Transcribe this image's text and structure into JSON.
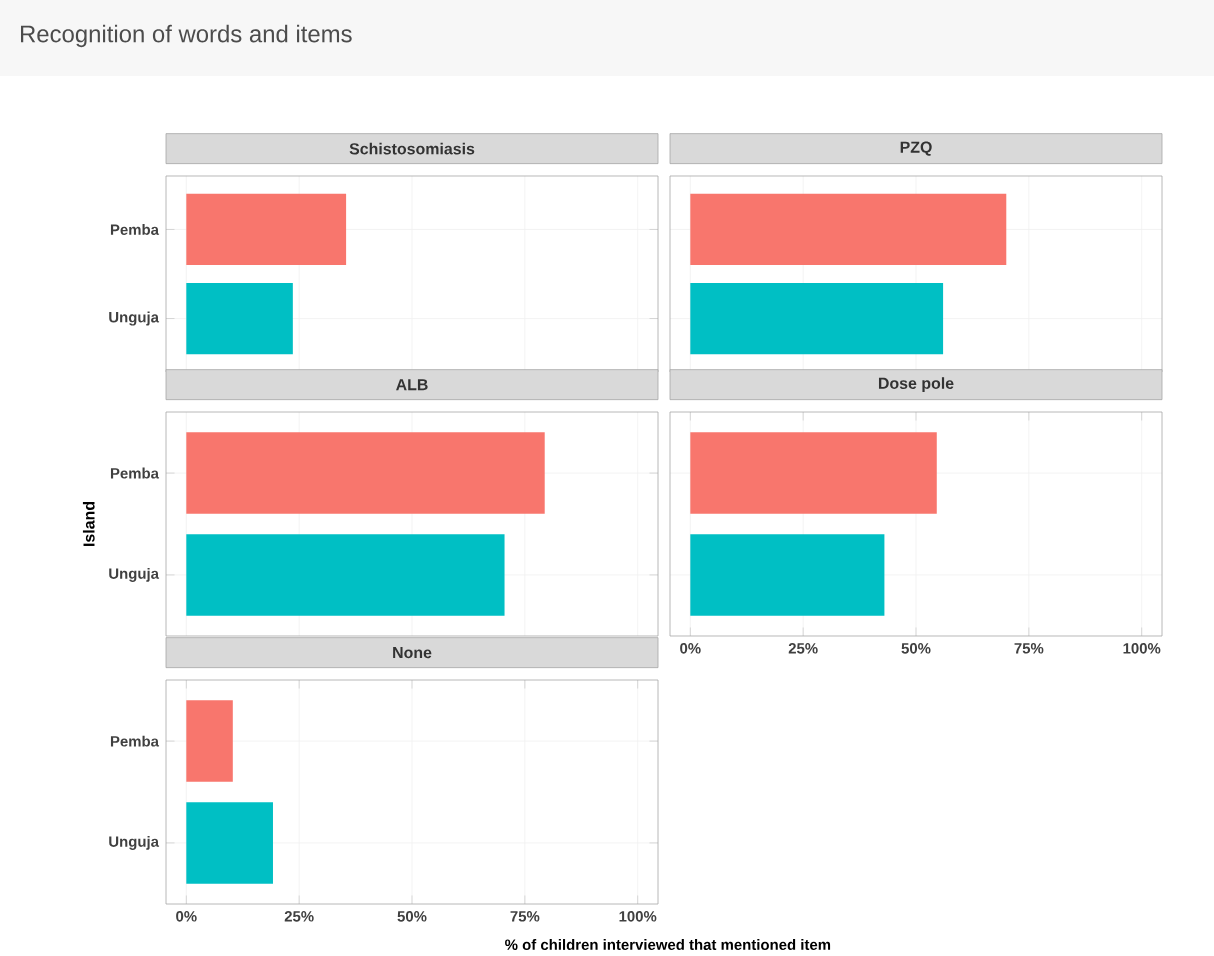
{
  "chart_data": [
    {
      "type": "bar",
      "orientation": "horizontal",
      "title": "Schistosomiasis",
      "annotations": [
        "Recognition of words and items"
      ],
      "categories": [
        "Pemba",
        "Unguja"
      ],
      "values": [
        35.4,
        23.6
      ],
      "colors": [
        "#f8766d",
        "#00bfc4"
      ],
      "xlim": [
        -4.5,
        104.5
      ],
      "xticks": [
        {
          "value": 0,
          "label": null
        },
        {
          "value": 25,
          "label": null
        },
        {
          "value": 50,
          "label": null
        },
        {
          "value": 75,
          "label": null
        },
        {
          "value": 100,
          "label": null
        }
      ],
      "grid": true,
      "tick_labels": "y"
    },
    {
      "type": "bar",
      "orientation": "horizontal",
      "title": "PZQ",
      "categories": [
        null,
        null
      ],
      "values": [
        70,
        56
      ],
      "colors": [
        "#f8766d",
        "#00bfc4"
      ],
      "xlim": [
        -4.5,
        104.5
      ],
      "xticks": [
        {
          "value": 0,
          "label": null
        },
        {
          "value": 25,
          "label": null
        },
        {
          "value": 50,
          "label": null
        },
        {
          "value": 75,
          "label": null
        },
        {
          "value": 100,
          "label": null
        }
      ],
      "grid": true,
      "tick_labels": false
    },
    {
      "type": "bar",
      "orientation": "horizontal",
      "title": "ALB",
      "ylabel": "Island",
      "categories": [
        "Pemba",
        "Unguja"
      ],
      "values": [
        79.4,
        70.5
      ],
      "colors": [
        "#f8766d",
        "#00bfc4"
      ],
      "xlim": [
        -4.5,
        104.5
      ],
      "xticks": [
        {
          "value": 0,
          "label": null
        },
        {
          "value": 25,
          "label": null
        },
        {
          "value": 50,
          "label": null
        },
        {
          "value": 75,
          "label": null
        },
        {
          "value": 100,
          "label": null
        }
      ],
      "grid": true,
      "tick_labels": "y"
    },
    {
      "type": "bar",
      "orientation": "horizontal",
      "title": "Dose pole",
      "categories": [
        null,
        null
      ],
      "values": [
        54.6,
        43
      ],
      "colors": [
        "#f8766d",
        "#00bfc4"
      ],
      "xlim": [
        -4.5,
        104.5
      ],
      "xticks": [
        {
          "value": 0,
          "label": "0%"
        },
        {
          "value": 25,
          "label": "25%"
        },
        {
          "value": 50,
          "label": "50%"
        },
        {
          "value": 75,
          "label": "75%"
        },
        {
          "value": 100,
          "label": "100%"
        }
      ],
      "grid": true,
      "tick_labels": "x"
    },
    {
      "type": "bar",
      "orientation": "horizontal",
      "title": "None",
      "xlabel": "% of children interviewed that mentioned item",
      "categories": [
        "Pemba",
        "Unguja"
      ],
      "values": [
        10.3,
        19.2
      ],
      "colors": [
        "#f8766d",
        "#00bfc4"
      ],
      "xlim": [
        -4.5,
        104.5
      ],
      "xticks": [
        {
          "value": 0,
          "label": "0%"
        },
        {
          "value": 25,
          "label": "25%"
        },
        {
          "value": 50,
          "label": "50%"
        },
        {
          "value": 75,
          "label": "75%"
        },
        {
          "value": 100,
          "label": "100%"
        }
      ],
      "grid": true
    }
  ]
}
